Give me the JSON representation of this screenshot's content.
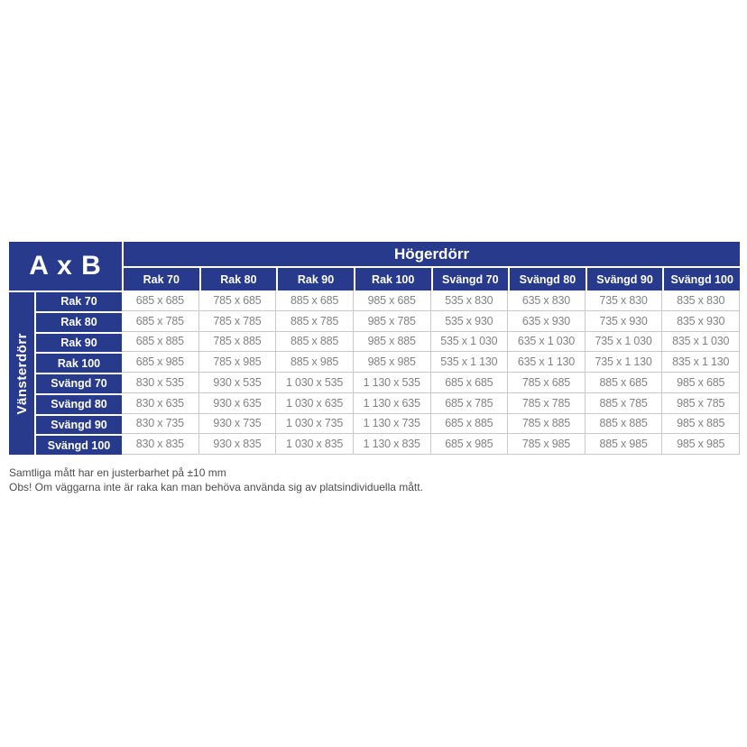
{
  "colors": {
    "header_blue": "#283A8C",
    "header_text": "#FFFFFF",
    "cell_text": "#828282",
    "grid_line": "#C9C9C9",
    "footnote_text": "#4D4D4D",
    "background": "#FFFFFF"
  },
  "table": {
    "corner_label": "A x B",
    "column_group_label": "Högerdörr",
    "row_group_label": "Vänsterdörr",
    "column_headers": [
      "Rak 70",
      "Rak 80",
      "Rak 90",
      "Rak 100",
      "Svängd 70",
      "Svängd 80",
      "Svängd 90",
      "Svängd 100"
    ],
    "row_headers": [
      "Rak 70",
      "Rak 80",
      "Rak 90",
      "Rak 100",
      "Svängd 70",
      "Svängd 80",
      "Svängd 90",
      "Svängd 100"
    ],
    "rows": [
      [
        "685 x 685",
        "785 x 685",
        "885 x 685",
        "985 x 685",
        "535 x 830",
        "635 x 830",
        "735 x 830",
        "835 x 830"
      ],
      [
        "685 x 785",
        "785 x 785",
        "885 x 785",
        "985 x 785",
        "535 x 930",
        "635 x 930",
        "735 x 930",
        "835 x 930"
      ],
      [
        "685 x 885",
        "785 x 885",
        "885 x 885",
        "985 x 885",
        "535 x 1 030",
        "635 x 1 030",
        "735 x 1 030",
        "835 x 1 030"
      ],
      [
        "685 x 985",
        "785 x 985",
        "885 x 985",
        "985 x 985",
        "535 x 1 130",
        "635 x 1 130",
        "735 x 1 130",
        "835 x 1 130"
      ],
      [
        "830 x 535",
        "930 x 535",
        "1 030 x 535",
        "1 130 x 535",
        "685 x 685",
        "785 x 685",
        "885 x 685",
        "985 x 685"
      ],
      [
        "830 x 635",
        "930 x 635",
        "1 030 x 635",
        "1 130 x 635",
        "685 x 785",
        "785 x 785",
        "885 x 785",
        "985 x 785"
      ],
      [
        "830 x 735",
        "930 x 735",
        "1 030 x 735",
        "1 130 x 735",
        "685 x 885",
        "785 x 885",
        "885 x 885",
        "985 x 885"
      ],
      [
        "830 x 835",
        "930 x 835",
        "1 030 x 835",
        "1 130 x 835",
        "685 x 985",
        "785 x 985",
        "885 x 985",
        "985 x 985"
      ]
    ]
  },
  "footnotes": {
    "line1": "Samtliga mått har en justerbarhet på ±10 mm",
    "line2": "Obs! Om väggarna inte är raka kan man behöva använda sig av platsindividuella mått."
  }
}
